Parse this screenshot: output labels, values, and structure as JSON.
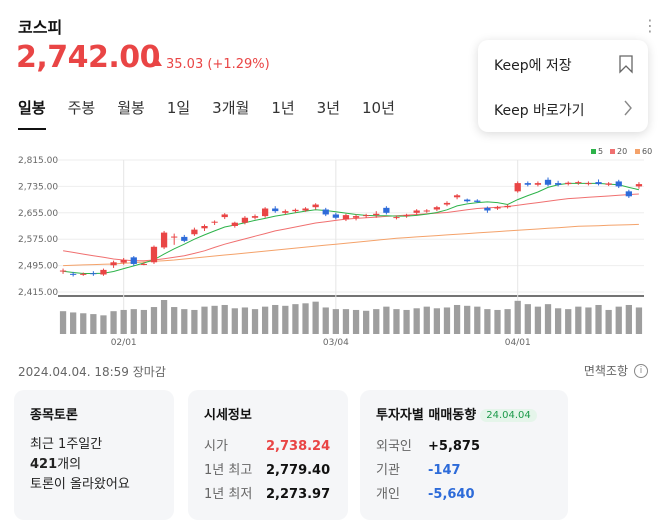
{
  "header": {
    "title": "코스피",
    "price": "2,742.00",
    "change": "35.03 (+1.29%)"
  },
  "tabs": [
    "일봉",
    "주봉",
    "월봉",
    "1일",
    "3개월",
    "1년",
    "3년",
    "10년"
  ],
  "popup": {
    "save_label": "Keep에 저장",
    "go_label": "Keep 바로가기"
  },
  "colors": {
    "up": "#e94545",
    "down": "#2d6bd9",
    "ma5": "#2db34a",
    "ma20": "#f07070",
    "ma60": "#f4a26a",
    "volume": "#9e9e9e"
  },
  "chart_data": {
    "type": "candlestick",
    "legend": [
      "5",
      "20",
      "60"
    ],
    "legend_position": "top-right",
    "y_ticks": [
      "2,815.00",
      "2,735.00",
      "2,655.00",
      "2,575.00",
      "2,495.00",
      "2,415.00"
    ],
    "ylim": [
      2415,
      2815
    ],
    "x_ticks": [
      {
        "label": "02/01",
        "index": 6
      },
      {
        "label": "03/04",
        "index": 27
      },
      {
        "label": "04/01",
        "index": 45
      }
    ],
    "candles": [
      [
        2478,
        2480,
        2470,
        2486
      ],
      [
        2470,
        2468,
        2462,
        2476
      ],
      [
        2468,
        2470,
        2464,
        2474
      ],
      [
        2472,
        2470,
        2464,
        2478
      ],
      [
        2468,
        2482,
        2464,
        2486
      ],
      [
        2496,
        2505,
        2488,
        2510
      ],
      [
        2504,
        2512,
        2498,
        2518
      ],
      [
        2520,
        2500,
        2494,
        2524
      ],
      [
        2500,
        2500,
        2496,
        2504
      ],
      [
        2505,
        2552,
        2500,
        2556
      ],
      [
        2550,
        2595,
        2545,
        2600
      ],
      [
        2580,
        2583,
        2558,
        2592
      ],
      [
        2582,
        2570,
        2566,
        2588
      ],
      [
        2590,
        2604,
        2585,
        2610
      ],
      [
        2608,
        2615,
        2600,
        2620
      ],
      [
        2625,
        2628,
        2618,
        2632
      ],
      [
        2642,
        2650,
        2636,
        2654
      ],
      [
        2615,
        2625,
        2610,
        2628
      ],
      [
        2625,
        2640,
        2620,
        2645
      ],
      [
        2640,
        2645,
        2635,
        2650
      ],
      [
        2645,
        2668,
        2640,
        2672
      ],
      [
        2668,
        2660,
        2655,
        2675
      ],
      [
        2655,
        2660,
        2650,
        2665
      ],
      [
        2660,
        2664,
        2655,
        2668
      ],
      [
        2662,
        2668,
        2658,
        2672
      ],
      [
        2672,
        2680,
        2665,
        2684
      ],
      [
        2665,
        2650,
        2645,
        2670
      ],
      [
        2650,
        2640,
        2635,
        2655
      ],
      [
        2635,
        2648,
        2630,
        2652
      ],
      [
        2640,
        2645,
        2632,
        2650
      ],
      [
        2645,
        2648,
        2640,
        2652
      ],
      [
        2648,
        2652,
        2640,
        2660
      ],
      [
        2670,
        2655,
        2650,
        2675
      ],
      [
        2640,
        2642,
        2635,
        2646
      ],
      [
        2645,
        2648,
        2640,
        2652
      ],
      [
        2655,
        2662,
        2648,
        2666
      ],
      [
        2660,
        2662,
        2655,
        2666
      ],
      [
        2665,
        2672,
        2660,
        2676
      ],
      [
        2680,
        2685,
        2675,
        2690
      ],
      [
        2702,
        2708,
        2696,
        2712
      ],
      [
        2695,
        2690,
        2686,
        2698
      ],
      [
        2692,
        2688,
        2685,
        2696
      ],
      [
        2670,
        2662,
        2655,
        2674
      ],
      [
        2668,
        2672,
        2664,
        2676
      ],
      [
        2672,
        2676,
        2668,
        2680
      ],
      [
        2720,
        2745,
        2716,
        2750
      ],
      [
        2745,
        2740,
        2735,
        2750
      ],
      [
        2740,
        2745,
        2735,
        2750
      ],
      [
        2755,
        2740,
        2735,
        2762
      ],
      [
        2745,
        2740,
        2735,
        2752
      ],
      [
        2742,
        2746,
        2738,
        2750
      ],
      [
        2745,
        2748,
        2740,
        2752
      ],
      [
        2742,
        2745,
        2738,
        2750
      ],
      [
        2748,
        2742,
        2738,
        2756
      ],
      [
        2740,
        2744,
        2736,
        2748
      ],
      [
        2750,
        2735,
        2730,
        2755
      ],
      [
        2720,
        2705,
        2700,
        2725
      ],
      [
        2735,
        2742,
        2728,
        2748
      ]
    ],
    "ma5": [
      2478,
      2474,
      2471,
      2471,
      2472,
      2477,
      2486,
      2494,
      2503,
      2513,
      2530,
      2546,
      2560,
      2575,
      2588,
      2600,
      2612,
      2618,
      2625,
      2632,
      2638,
      2645,
      2650,
      2655,
      2660,
      2664,
      2662,
      2658,
      2654,
      2650,
      2647,
      2646,
      2646,
      2645,
      2645,
      2647,
      2651,
      2656,
      2664,
      2676,
      2682,
      2686,
      2688,
      2686,
      2680,
      2695,
      2707,
      2718,
      2732,
      2740,
      2744,
      2744,
      2744,
      2744,
      2742,
      2740,
      2732,
      2725
    ],
    "ma20": [
      2540,
      2535,
      2530,
      2525,
      2520,
      2515,
      2512,
      2510,
      2510,
      2512,
      2516,
      2520,
      2525,
      2532,
      2540,
      2550,
      2560,
      2568,
      2576,
      2584,
      2592,
      2600,
      2606,
      2612,
      2618,
      2624,
      2628,
      2632,
      2636,
      2638,
      2640,
      2642,
      2644,
      2646,
      2648,
      2650,
      2652,
      2654,
      2656,
      2660,
      2664,
      2668,
      2670,
      2672,
      2674,
      2678,
      2682,
      2686,
      2690,
      2694,
      2698,
      2700,
      2702,
      2704,
      2706,
      2708,
      2710,
      2712
    ],
    "ma60": [
      2495,
      2496,
      2497,
      2498,
      2499,
      2500,
      2502,
      2504,
      2506,
      2508,
      2510,
      2512,
      2515,
      2518,
      2521,
      2524,
      2527,
      2530,
      2533,
      2536,
      2539,
      2542,
      2545,
      2548,
      2551,
      2554,
      2557,
      2560,
      2563,
      2566,
      2569,
      2572,
      2575,
      2578,
      2580,
      2582,
      2584,
      2586,
      2588,
      2590,
      2592,
      2594,
      2596,
      2598,
      2600,
      2602,
      2604,
      2606,
      2608,
      2610,
      2612,
      2614,
      2615,
      2616,
      2617,
      2618,
      2619,
      2620
    ],
    "volume": [
      55,
      52,
      50,
      48,
      45,
      55,
      58,
      60,
      58,
      65,
      82,
      65,
      60,
      58,
      66,
      68,
      70,
      62,
      64,
      60,
      66,
      70,
      68,
      72,
      74,
      78,
      64,
      60,
      60,
      58,
      56,
      60,
      66,
      60,
      58,
      62,
      66,
      62,
      64,
      70,
      68,
      66,
      60,
      58,
      60,
      80,
      72,
      66,
      72,
      62,
      60,
      66,
      64,
      70,
      58,
      66,
      70,
      64
    ]
  },
  "status": {
    "datetime": "2024.04.04. 18:59 장마감",
    "disclaimer": "면책조항"
  },
  "card_discussion": {
    "title": "종목토론",
    "line1": "최근 1주일간",
    "count": "421",
    "count_suffix": "개의",
    "line3": "토론이 올라왔어요"
  },
  "card_quote": {
    "title": "시세정보",
    "rows": [
      {
        "label": "시가",
        "value": "2,738.24"
      },
      {
        "label": "1년 최고",
        "value": "2,779.40"
      },
      {
        "label": "1년 최저",
        "value": "2,273.97"
      }
    ]
  },
  "card_investor": {
    "title": "투자자별 매매동향",
    "date": "24.04.04",
    "rows": [
      {
        "label": "외국인",
        "value": "+5,875"
      },
      {
        "label": "기관",
        "value": "-147"
      },
      {
        "label": "개인",
        "value": "-5,640"
      }
    ]
  }
}
